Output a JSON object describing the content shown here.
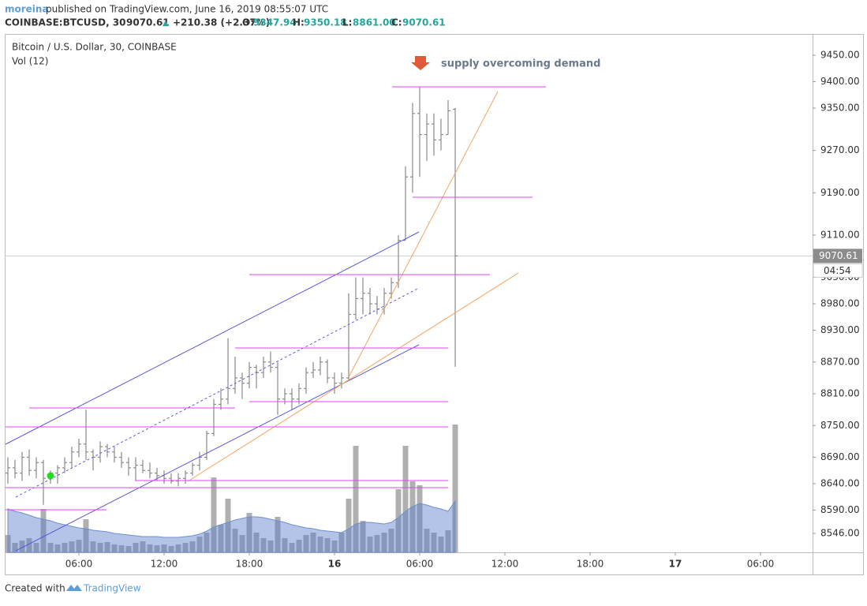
{
  "header": {
    "author": "moreina",
    "published": "published on TradingView.com, June 16, 2019 08:55:07 UTC",
    "symbol": "COINBASE:BTCUSD, 30",
    "last": "9070.61",
    "change_arrow": "▲",
    "change": "+210.38 (+2.37%)",
    "o_label": "O:",
    "o_value": "9347.94",
    "h_label": "H:",
    "h_value": "9350.18",
    "l_label": "L:",
    "l_value": "8861.00",
    "c_label": "C:",
    "c_value": "9070.61"
  },
  "legend": {
    "title": "Bitcoin / U.S. Dollar, 30, COINBASE",
    "volume": "Vol (12)"
  },
  "countdown": "04:54",
  "annotation": "supply overcoming demand",
  "footer": {
    "created": "Created with",
    "brand": "TradingView"
  },
  "chart_data": {
    "type": "ohlc",
    "color": "#8a8a8a",
    "open": [
      8660,
      8670,
      8660,
      8690,
      8665,
      8680,
      8650,
      8660,
      8670,
      8680,
      8700,
      8715,
      8700,
      8690,
      8710,
      8700,
      8690,
      8680,
      8670,
      8675,
      8665,
      8660,
      8655,
      8650,
      8645,
      8650,
      8660,
      8675,
      8690,
      8735,
      8790,
      8800,
      8820,
      8840,
      8830,
      8860,
      8850,
      8870,
      8860,
      8800,
      8810,
      8800,
      8820,
      8850,
      8855,
      8870,
      8840,
      8830,
      8840,
      8960,
      8990,
      9000,
      8980,
      8970,
      9000,
      9020,
      9100,
      9220,
      9340,
      9300,
      9320,
      9290,
      9300,
      9347.94
    ],
    "high": [
      8690,
      8685,
      8700,
      8705,
      8690,
      8685,
      8665,
      8675,
      8690,
      8710,
      8725,
      8780,
      8705,
      8720,
      8715,
      8710,
      8700,
      8690,
      8690,
      8685,
      8680,
      8670,
      8665,
      8660,
      8660,
      8665,
      8680,
      8700,
      8740,
      8800,
      8820,
      8915,
      8880,
      8850,
      8870,
      8865,
      8880,
      8890,
      8870,
      8820,
      8820,
      8830,
      8860,
      8870,
      8880,
      8875,
      8850,
      8850,
      9000,
      9030,
      9030,
      9010,
      8995,
      9010,
      9030,
      9110,
      9240,
      9360,
      9390,
      9340,
      9340,
      9330,
      9365,
      9350.18
    ],
    "low": [
      8640,
      8650,
      8645,
      8655,
      8650,
      8600,
      8640,
      8640,
      8660,
      8670,
      8690,
      8685,
      8665,
      8680,
      8690,
      8680,
      8670,
      8655,
      8645,
      8660,
      8650,
      8645,
      8640,
      8640,
      8635,
      8640,
      8655,
      8665,
      8685,
      8730,
      8780,
      8790,
      8810,
      8800,
      8820,
      8820,
      8840,
      8850,
      8770,
      8790,
      8780,
      8790,
      8810,
      8840,
      8845,
      8830,
      8810,
      8820,
      8835,
      8950,
      8960,
      8960,
      8960,
      8960,
      8990,
      9010,
      9100,
      9190,
      9220,
      9250,
      9260,
      9270,
      9300,
      8861
    ],
    "close": [
      8670,
      8660,
      8690,
      8665,
      8680,
      8650,
      8660,
      8670,
      8680,
      8700,
      8715,
      8700,
      8690,
      8710,
      8700,
      8690,
      8680,
      8670,
      8675,
      8665,
      8660,
      8655,
      8650,
      8645,
      8650,
      8660,
      8675,
      8690,
      8735,
      8790,
      8800,
      8820,
      8840,
      8830,
      8860,
      8850,
      8870,
      8860,
      8800,
      8810,
      8800,
      8820,
      8850,
      8855,
      8870,
      8840,
      8830,
      8840,
      8960,
      8990,
      9000,
      8980,
      8970,
      9000,
      9020,
      9100,
      9220,
      9340,
      9300,
      9320,
      9290,
      9300,
      9345,
      9070.61
    ],
    "volume": [
      22,
      12,
      15,
      18,
      12,
      55,
      12,
      10,
      12,
      14,
      16,
      42,
      14,
      12,
      13,
      10,
      9,
      8,
      12,
      14,
      10,
      9,
      10,
      8,
      10,
      12,
      14,
      20,
      25,
      95,
      35,
      68,
      30,
      22,
      50,
      25,
      18,
      15,
      45,
      18,
      12,
      16,
      22,
      25,
      20,
      18,
      15,
      25,
      68,
      135,
      40,
      20,
      22,
      25,
      30,
      80,
      135,
      90,
      85,
      30,
      25,
      20,
      28,
      162
    ],
    "volume_ma": [
      55,
      52,
      50,
      47,
      44,
      42,
      40,
      37,
      35,
      33,
      31,
      30,
      28,
      27,
      26,
      24,
      23,
      22,
      21,
      20,
      20,
      20,
      19,
      19,
      19,
      20,
      21,
      23,
      27,
      32,
      35,
      38,
      41,
      43,
      45,
      45,
      44,
      42,
      40,
      38,
      35,
      33,
      31,
      30,
      28,
      27,
      26,
      25,
      30,
      36,
      38,
      38,
      37,
      36,
      38,
      44,
      52,
      58,
      62,
      60,
      57,
      55,
      52,
      65
    ],
    "volume_ylim": [
      0,
      656
    ],
    "ylim": [
      8510.2,
      9488.8
    ],
    "yticks": [
      {
        "value": 9450,
        "label": "9450.00"
      },
      {
        "value": 9400,
        "label": "9400.00"
      },
      {
        "value": 9350,
        "label": "9350.00"
      },
      {
        "value": 9270,
        "label": "9270.00"
      },
      {
        "value": 9190,
        "label": "9190.00"
      },
      {
        "value": 9110,
        "label": "9110.00"
      },
      {
        "value": 9030,
        "label": "9030.00"
      },
      {
        "value": 8980,
        "label": "8980.00"
      },
      {
        "value": 8930,
        "label": "8930.00"
      },
      {
        "value": 8870,
        "label": "8870.00"
      },
      {
        "value": 8810,
        "label": "8810.00"
      },
      {
        "value": 8750,
        "label": "8750.00"
      },
      {
        "value": 8690,
        "label": "8690.00"
      },
      {
        "value": 8640,
        "label": "8640.00"
      },
      {
        "value": 8590,
        "label": "8590.00"
      },
      {
        "value": 8546,
        "label": "8546.00"
      }
    ],
    "xlim": [
      -0.333,
      113.333
    ],
    "xticks": [
      {
        "value": 10,
        "label": "06:00"
      },
      {
        "value": 22,
        "label": "12:00"
      },
      {
        "value": 34,
        "label": "18:00"
      },
      {
        "value": 46,
        "label": "16"
      },
      {
        "value": 58,
        "label": "06:00"
      },
      {
        "value": 70,
        "label": "12:00"
      },
      {
        "value": 82,
        "label": "18:00"
      },
      {
        "value": 94,
        "label": "17"
      },
      {
        "value": 106,
        "label": "06:00"
      }
    ]
  }
}
